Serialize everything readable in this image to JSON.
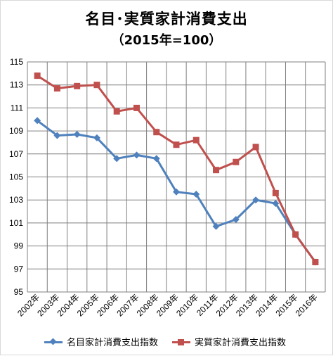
{
  "title_line1": "名目･実質家計消費支出",
  "title_line2": "（2015年=100）",
  "chart_data": {
    "type": "line",
    "categories": [
      "2002年",
      "2003年",
      "2004年",
      "2005年",
      "2006年",
      "2007年",
      "2008年",
      "2009年",
      "2010年",
      "2011年",
      "2012年",
      "2013年",
      "2014年",
      "2015年",
      "2016年"
    ],
    "ylim": [
      95,
      115
    ],
    "yticks": [
      95,
      97,
      99,
      101,
      103,
      105,
      107,
      109,
      111,
      113,
      115
    ],
    "grid": true,
    "legend_position": "bottom",
    "series": [
      {
        "name": "名目家計消費支出指数",
        "color": "#4F81BD",
        "marker": "diamond",
        "values": [
          109.9,
          108.6,
          108.7,
          108.4,
          106.6,
          106.9,
          106.6,
          103.7,
          103.5,
          100.7,
          101.3,
          103.0,
          102.7,
          100.0,
          97.6
        ]
      },
      {
        "name": "実質家計消費支出指数",
        "color": "#C0504D",
        "marker": "square",
        "values": [
          113.8,
          112.7,
          112.9,
          113.0,
          110.7,
          111.0,
          108.9,
          107.8,
          108.2,
          105.6,
          106.3,
          107.6,
          103.6,
          100.0,
          97.6
        ]
      }
    ]
  }
}
